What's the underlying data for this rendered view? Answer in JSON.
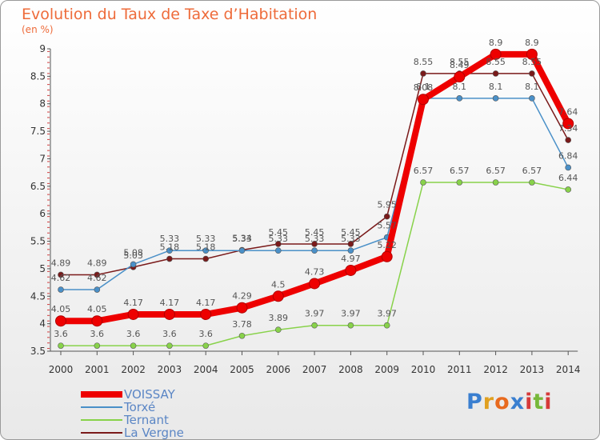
{
  "chart_data": {
    "type": "line",
    "title": "Evolution du Taux de Taxe d’Habitation",
    "subtitle": "(en %)",
    "x": [
      "2000",
      "2001",
      "2002",
      "2003",
      "2004",
      "2005",
      "2006",
      "2007",
      "2008",
      "2009",
      "2010",
      "2011",
      "2012",
      "2013",
      "2014"
    ],
    "yticks": [
      "3.5",
      "4",
      "4.5",
      "5",
      "5.5",
      "6",
      "6.5",
      "7",
      "7.5",
      "8",
      "8.5",
      "9"
    ],
    "ylim": [
      3.5,
      9
    ],
    "grid": false,
    "legend_position": "bottom-left",
    "series": [
      {
        "name": "VOISSAY",
        "color": "#ee0000",
        "values": [
          4.05,
          4.05,
          4.17,
          4.17,
          4.17,
          4.29,
          4.5,
          4.73,
          4.97,
          5.22,
          8.08,
          8.49,
          8.9,
          8.9,
          7.64
        ]
      },
      {
        "name": "Torxé",
        "color": "#4a90c8",
        "values": [
          4.62,
          4.62,
          5.08,
          5.33,
          5.33,
          5.33,
          5.33,
          5.33,
          5.33,
          5.57,
          8.1,
          8.1,
          8.1,
          8.1,
          6.84
        ]
      },
      {
        "name": "Ternant",
        "color": "#88d24a",
        "values": [
          3.6,
          3.6,
          3.6,
          3.6,
          3.6,
          3.78,
          3.89,
          3.97,
          3.97,
          3.97,
          6.57,
          6.57,
          6.57,
          6.57,
          6.44
        ]
      },
      {
        "name": "La Vergne",
        "color": "#7a1a1a",
        "values": [
          4.89,
          4.89,
          5.03,
          5.18,
          5.18,
          5.34,
          5.45,
          5.45,
          5.45,
          5.95,
          8.55,
          8.55,
          8.55,
          8.55,
          7.34
        ]
      }
    ],
    "label_text": {
      "VOISSAY": [
        "4.05",
        "4.05",
        "4.17",
        "4.17",
        "4.17",
        "4.29",
        "4.5",
        "4.73",
        "4.97",
        "5.22",
        "8.08",
        "8.49",
        "8.9",
        "8.9",
        "7.64"
      ],
      "Torxé": [
        "4.62",
        "4.62",
        "5.08",
        "5.33",
        "5.33",
        "5.33",
        "5.33",
        "5.33",
        "5.33",
        "5.57",
        "8.1",
        "8.1",
        "8.1",
        "8.1",
        "6.84"
      ],
      "Ternant": [
        "3.6",
        "3.6",
        "3.6",
        "3.6",
        "3.6",
        "3.78",
        "3.89",
        "3.97",
        "3.97",
        "3.97",
        "6.57",
        "6.57",
        "6.57",
        "6.57",
        "6.44"
      ],
      "La Vergne": [
        "4.89",
        "4.89",
        "5.03",
        "5.18",
        "5.18",
        "5.34",
        "5.45",
        "5.45",
        "5.45",
        "5.95",
        "8.55",
        "8.55",
        "8.55",
        "8.55",
        "7.34"
      ]
    }
  },
  "branding": {
    "logo_letters": [
      "P",
      "r",
      "o",
      "x",
      "i",
      "t",
      "i"
    ],
    "logo_colors": [
      "#3a7fd0",
      "#e0a020",
      "#e86a1e",
      "#3a7fd0",
      "#d63a3a",
      "#77b83a",
      "#d63a3a"
    ]
  }
}
